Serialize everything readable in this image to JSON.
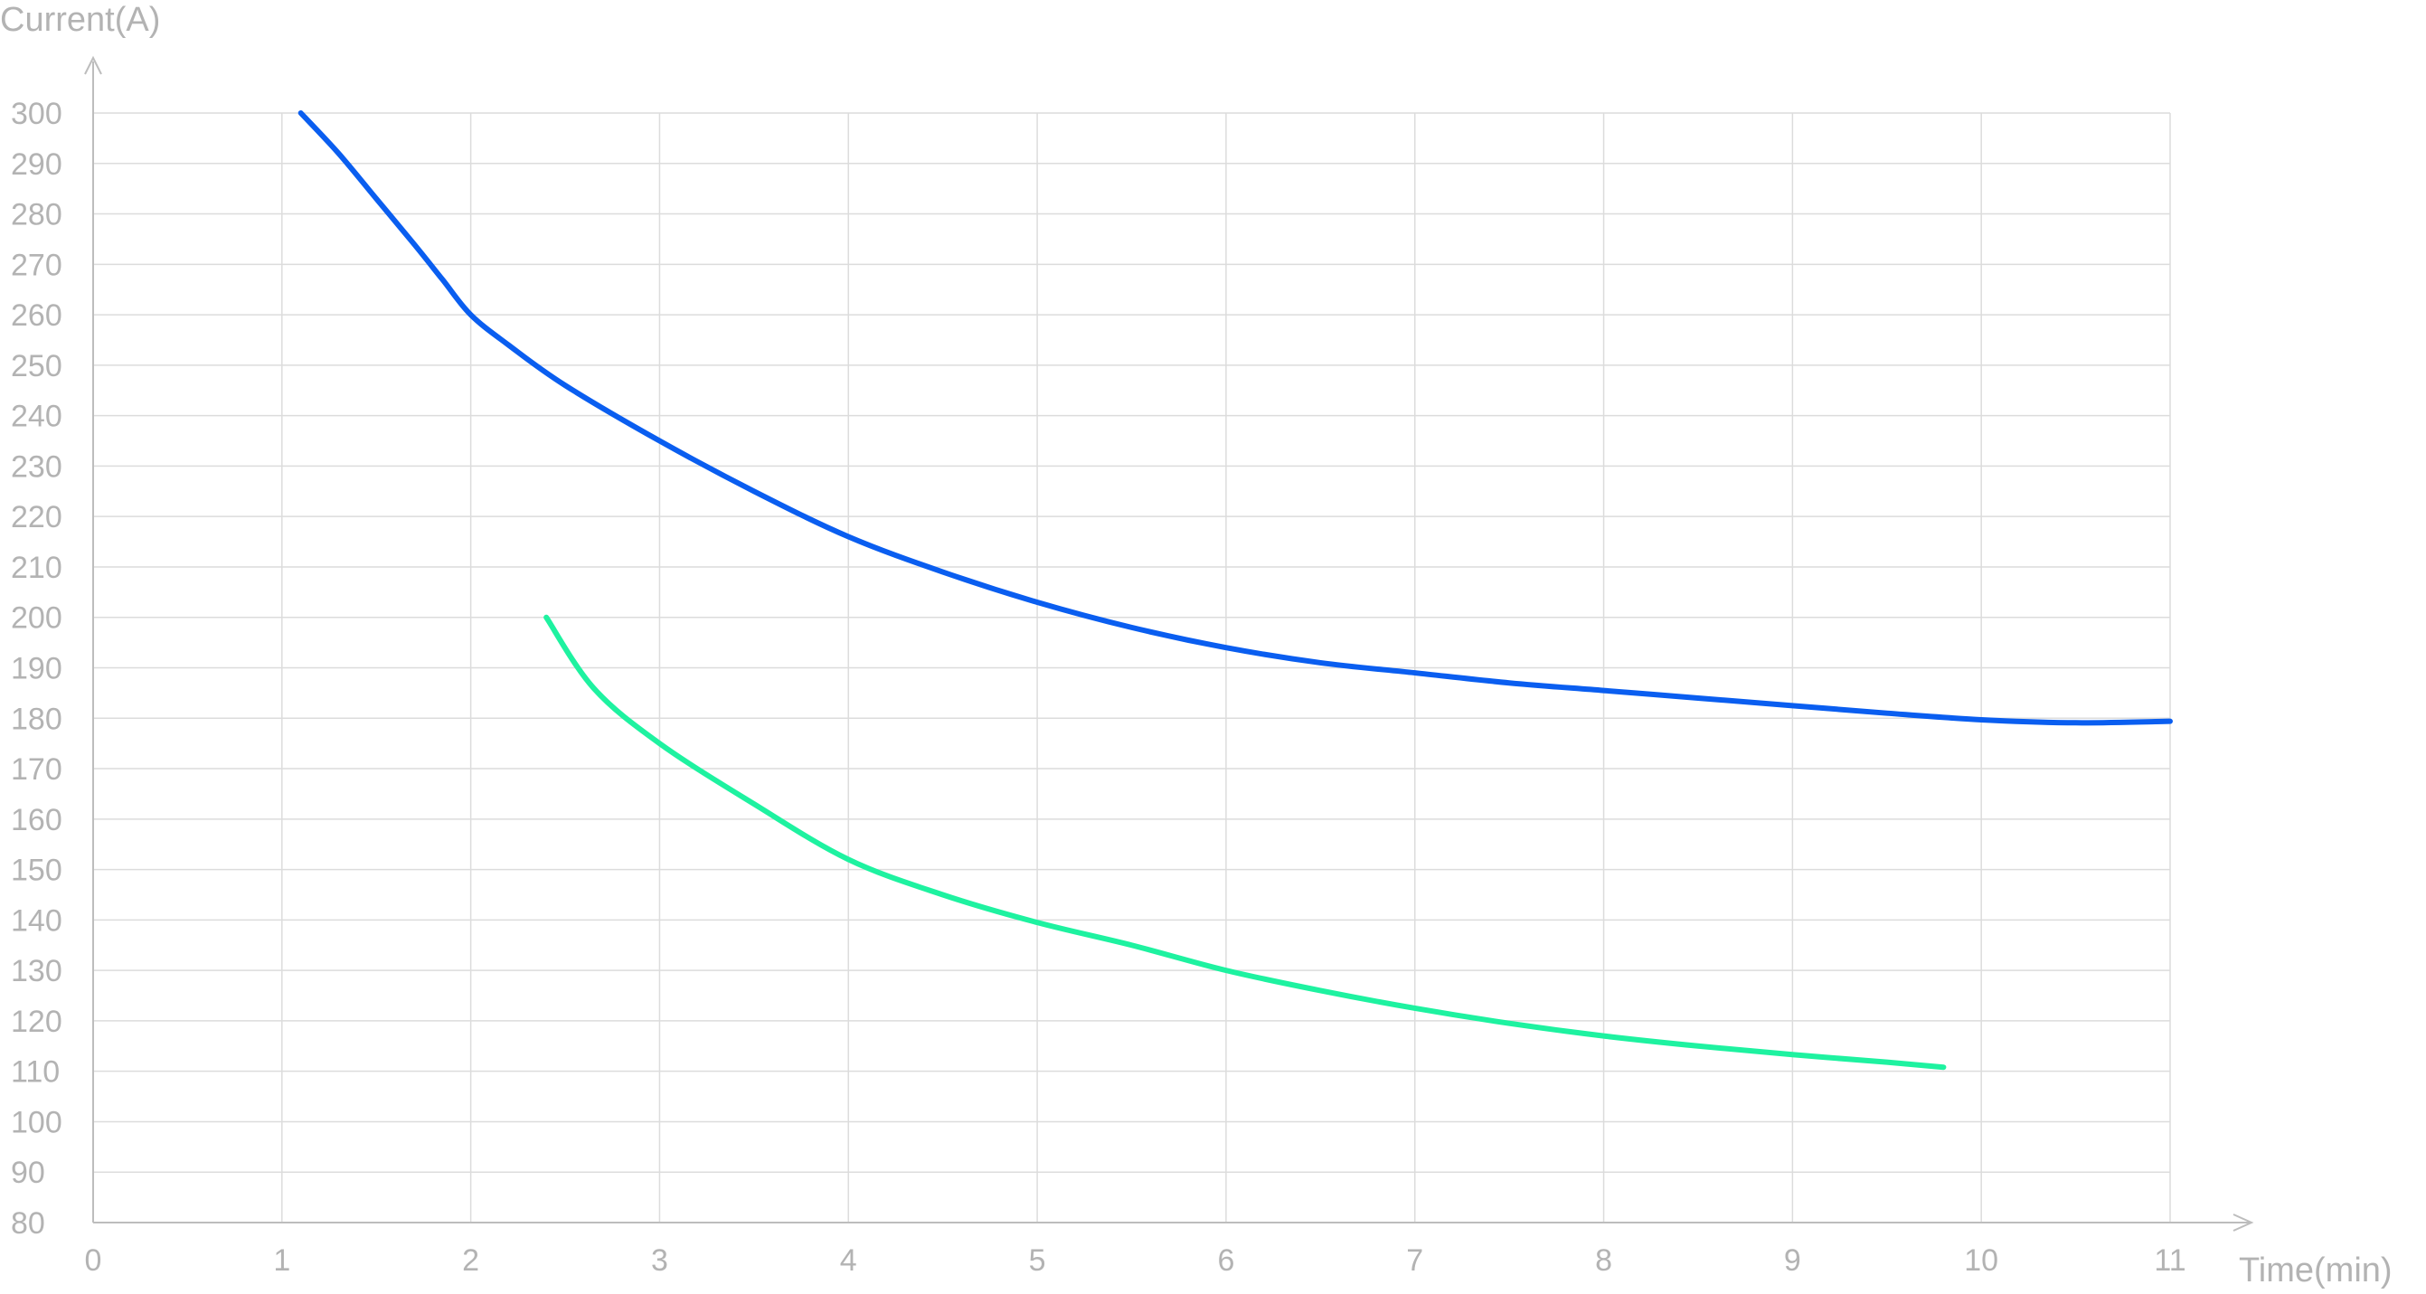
{
  "chart_data": {
    "type": "line",
    "title": "",
    "xlabel": "Time(min)",
    "ylabel": "Current(A)",
    "xlim": [
      0,
      11
    ],
    "ylim": [
      80,
      300
    ],
    "x_ticks": [
      "0",
      "1",
      "2",
      "3",
      "4",
      "5",
      "6",
      "7",
      "8",
      "9",
      "10",
      "11"
    ],
    "y_ticks": [
      "80",
      "90",
      "100",
      "110",
      "120",
      "130",
      "140",
      "150",
      "160",
      "170",
      "180",
      "190",
      "200",
      "210",
      "220",
      "230",
      "240",
      "250",
      "260",
      "270",
      "280",
      "290",
      "300"
    ],
    "grid": true,
    "legend": "none",
    "series": [
      {
        "color": "#0a5ef0",
        "points": [
          [
            1.1,
            300
          ],
          [
            1.3,
            292
          ],
          [
            1.5,
            283
          ],
          [
            1.7,
            274
          ],
          [
            1.85,
            267
          ],
          [
            2.0,
            260
          ],
          [
            2.2,
            254
          ],
          [
            2.5,
            246
          ],
          [
            3.0,
            235
          ],
          [
            3.5,
            225
          ],
          [
            4.0,
            216
          ],
          [
            4.5,
            209
          ],
          [
            5.0,
            203
          ],
          [
            5.5,
            198
          ],
          [
            6.0,
            194
          ],
          [
            6.5,
            191
          ],
          [
            7.0,
            189
          ],
          [
            7.5,
            187
          ],
          [
            8.0,
            185.5
          ],
          [
            8.5,
            184
          ],
          [
            9.0,
            182.5
          ],
          [
            9.5,
            181
          ],
          [
            10.0,
            179.7
          ],
          [
            10.5,
            179.1
          ],
          [
            11.0,
            179.4
          ]
        ]
      },
      {
        "color": "#1ef2a0",
        "points": [
          [
            2.4,
            200
          ],
          [
            2.65,
            186
          ],
          [
            3.0,
            175
          ],
          [
            3.5,
            163
          ],
          [
            4.0,
            152
          ],
          [
            4.5,
            145
          ],
          [
            5.0,
            139.5
          ],
          [
            5.5,
            135
          ],
          [
            6.0,
            130
          ],
          [
            6.5,
            126
          ],
          [
            7.0,
            122.5
          ],
          [
            7.5,
            119.5
          ],
          [
            8.0,
            117
          ],
          [
            8.5,
            115
          ],
          [
            9.0,
            113.3
          ],
          [
            9.5,
            111.8
          ],
          [
            9.8,
            110.8
          ]
        ]
      }
    ]
  }
}
